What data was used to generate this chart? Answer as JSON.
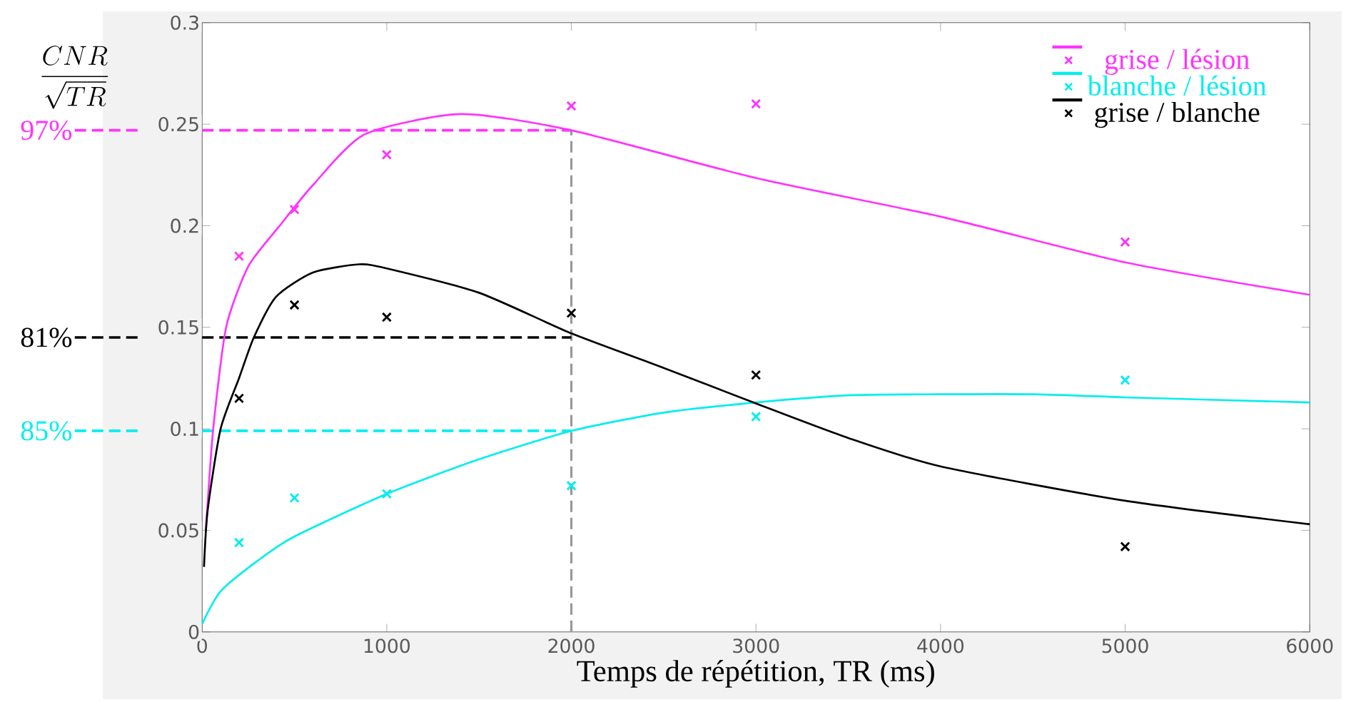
{
  "chart_data": {
    "type": "scatter",
    "xlabel": "Temps de répétition, TR (ms)",
    "ylabel": "\\frac{CNR}{\\sqrt{TR}}",
    "xlim": [
      0,
      6000
    ],
    "ylim": [
      0,
      0.3
    ],
    "xticks": [
      0,
      1000,
      2000,
      3000,
      4000,
      5000,
      6000
    ],
    "yticks": [
      0,
      0.05,
      0.1,
      0.15,
      0.2,
      0.25,
      0.3
    ],
    "grid": false,
    "legend": "top right",
    "series": [
      {
        "type": "line",
        "color": "#ff33ff",
        "x": [
          20,
          60,
          130,
          250,
          420,
          600,
          880,
          1400,
          2000,
          3000,
          4000,
          5000,
          6000
        ],
        "values": [
          0.05,
          0.1,
          0.15,
          0.18,
          0.2,
          0.22,
          0.245,
          0.255,
          0.247,
          0.2235,
          0.2045,
          0.182,
          0.166
        ]
      },
      {
        "type": "line",
        "color": "#00eeee",
        "x": [
          0,
          100,
          300,
          500,
          1000,
          1500,
          2000,
          2500,
          3000,
          3500,
          4000,
          4500,
          5000,
          6000
        ],
        "values": [
          0.004,
          0.02,
          0.035,
          0.047,
          0.068,
          0.085,
          0.099,
          0.108,
          0.113,
          0.1165,
          0.117,
          0.117,
          0.1155,
          0.113
        ]
      },
      {
        "type": "line",
        "color": "#000000",
        "x": [
          10,
          30,
          100,
          200,
          280,
          400,
          600,
          850,
          1000,
          1500,
          2000,
          2500,
          3000,
          3500,
          4000,
          5000,
          6000
        ],
        "values": [
          0.032,
          0.06,
          0.1,
          0.125,
          0.145,
          0.165,
          0.177,
          0.181,
          0.179,
          0.167,
          0.147,
          0.13,
          0.1125,
          0.0955,
          0.0815,
          0.0646,
          0.053
        ]
      },
      {
        "name": "grise / lésion",
        "color": "#ff33ff",
        "marker": "cross",
        "x": [
          200,
          500,
          1000,
          2000,
          3000,
          5000
        ],
        "values": [
          0.185,
          0.208,
          0.235,
          0.259,
          0.26,
          0.192
        ]
      },
      {
        "name": "blanche / lésion",
        "color": "#00eeee",
        "marker": "cross",
        "x": [
          200,
          500,
          1000,
          2000,
          3000,
          5000
        ],
        "values": [
          0.044,
          0.066,
          0.068,
          0.072,
          0.106,
          0.124
        ]
      },
      {
        "name": "grise / blanche",
        "color": "#000000",
        "marker": "cross",
        "x": [
          200,
          500,
          1000,
          2000,
          3000,
          5000
        ],
        "values": [
          0.115,
          0.161,
          0.155,
          0.157,
          0.1265,
          0.042
        ]
      }
    ],
    "ref_lines": [
      {
        "axis": "x",
        "value": 2000,
        "color": "#999999",
        "line_style": "dashed"
      },
      {
        "axis": "y",
        "value": 0.247,
        "color": "#ff33ff",
        "line_style": "dashed"
      },
      {
        "axis": "y",
        "value": 0.145,
        "color": "#000000",
        "line_style": "dashed"
      },
      {
        "axis": "y",
        "value": 0.099,
        "color": "#00eeee",
        "line_style": "dashed"
      }
    ],
    "annotations": [
      "97%",
      "81%",
      "85%"
    ]
  }
}
